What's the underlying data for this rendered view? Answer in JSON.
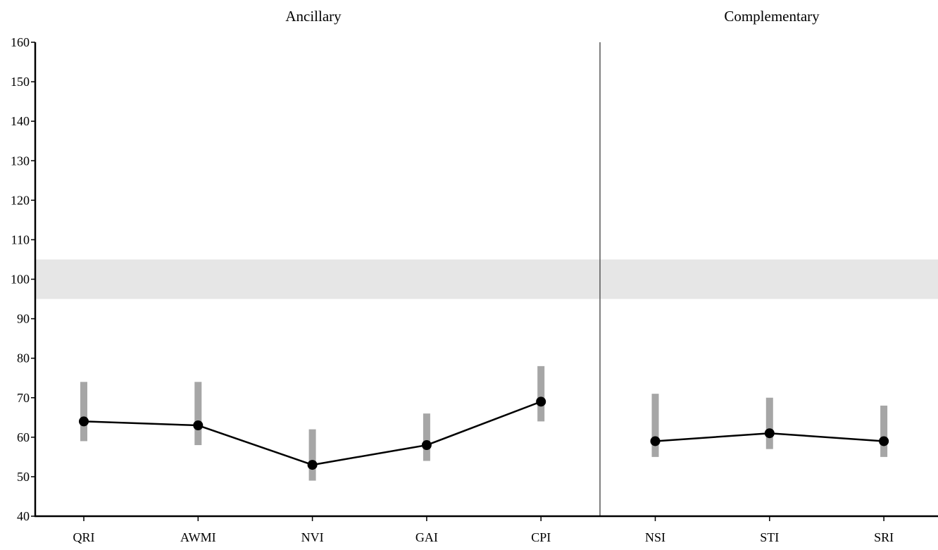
{
  "chart_data": {
    "type": "line",
    "title": "",
    "xlabel": "",
    "ylabel": "",
    "ylim": [
      40,
      160
    ],
    "y_ticks": [
      40,
      50,
      60,
      70,
      80,
      90,
      100,
      110,
      120,
      130,
      140,
      150,
      160
    ],
    "grid": false,
    "reference_band": [
      95,
      105
    ],
    "groups": [
      {
        "label": "Ancillary",
        "categories": [
          "QRI",
          "AWMI",
          "NVI",
          "GAI",
          "CPI"
        ],
        "values": [
          64,
          63,
          53,
          58,
          69
        ],
        "ci_low": [
          59,
          58,
          49,
          54,
          64
        ],
        "ci_high": [
          74,
          74,
          62,
          66,
          78
        ]
      },
      {
        "label": "Complementary",
        "categories": [
          "NSI",
          "STI",
          "SRI"
        ],
        "values": [
          59,
          61,
          59
        ],
        "ci_low": [
          55,
          57,
          55
        ],
        "ci_high": [
          71,
          70,
          68
        ]
      }
    ],
    "colors": {
      "line": "#000000",
      "point": "#000000",
      "error_bar": "#a6a6a6",
      "band": "#e6e6e6",
      "axis": "#000000",
      "divider": "#555555"
    }
  }
}
